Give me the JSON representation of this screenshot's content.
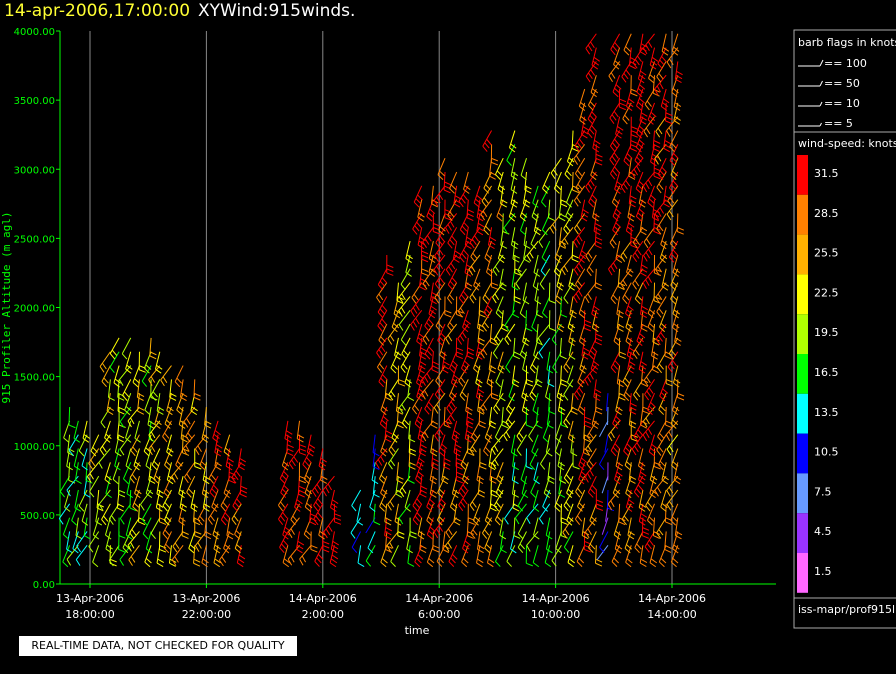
{
  "title": {
    "date": "14-apr-2006,17:00:00",
    "name": "XYWind:915winds."
  },
  "chart_data": {
    "type": "scatter",
    "ylabel": "915 Profiler Altitude (m agl)",
    "xlabel": "time",
    "ylim": [
      0,
      4000
    ],
    "y_ticks": [
      "0.00",
      "500.00",
      "1000.00",
      "1500.00",
      "2000.00",
      "2500.00",
      "3000.00",
      "3500.00",
      "4000.00"
    ],
    "x_ticks": [
      {
        "date": "13-Apr-2006",
        "time": "18:00:00"
      },
      {
        "date": "13-Apr-2006",
        "time": "22:00:00"
      },
      {
        "date": "14-Apr-2006",
        "time": "2:00:00"
      },
      {
        "date": "14-Apr-2006",
        "time": "6:00:00"
      },
      {
        "date": "14-Apr-2006",
        "time": "10:00:00"
      },
      {
        "date": "14-Apr-2006",
        "time": "14:00:00"
      }
    ],
    "grid": "vertical",
    "columns": [
      {
        "t": 17.3,
        "top": 1300,
        "spd": 19
      },
      {
        "t": 17.6,
        "top": 1200,
        "spd": 17
      },
      {
        "t": 17.9,
        "top": 1200,
        "spd": 18
      },
      {
        "t": 18.3,
        "top": 1100,
        "spd": 21
      },
      {
        "t": 18.7,
        "top": 1750,
        "spd": 23
      },
      {
        "t": 19.0,
        "top": 1800,
        "spd": 22
      },
      {
        "t": 19.4,
        "top": 1800,
        "spd": 20
      },
      {
        "t": 19.7,
        "top": 1750,
        "spd": 24
      },
      {
        "t": 20.1,
        "top": 1800,
        "spd": 21
      },
      {
        "t": 20.4,
        "top": 1700,
        "spd": 24
      },
      {
        "t": 20.8,
        "top": 1650,
        "spd": 26
      },
      {
        "t": 21.2,
        "top": 1600,
        "spd": 27
      },
      {
        "t": 21.6,
        "top": 1500,
        "spd": 27
      },
      {
        "t": 22.0,
        "top": 1300,
        "spd": 28
      },
      {
        "t": 22.4,
        "top": 1200,
        "spd": 30
      },
      {
        "t": 22.8,
        "top": 1100,
        "spd": 31
      },
      {
        "t": 23.2,
        "top": 1050,
        "spd": 31
      },
      {
        "t": 24.8,
        "top": 1200,
        "spd": 32
      },
      {
        "t": 25.2,
        "top": 1200,
        "spd": 32
      },
      {
        "t": 25.6,
        "top": 1150,
        "spd": 32
      },
      {
        "t": 26.0,
        "top": 1000,
        "spd": 32
      },
      {
        "t": 26.4,
        "top": 800,
        "spd": 32
      },
      {
        "t": 27.3,
        "top": 750,
        "spd": 12
      },
      {
        "t": 27.8,
        "top": 1100,
        "spd": 14
      },
      {
        "t": 28.2,
        "top": 2400,
        "spd": 31
      },
      {
        "t": 28.6,
        "top": 2200,
        "spd": 25
      },
      {
        "t": 29.0,
        "top": 2500,
        "spd": 22
      },
      {
        "t": 29.4,
        "top": 2900,
        "spd": 32
      },
      {
        "t": 29.8,
        "top": 2900,
        "spd": 32
      },
      {
        "t": 30.2,
        "top": 3100,
        "spd": 32
      },
      {
        "t": 30.6,
        "top": 3000,
        "spd": 32
      },
      {
        "t": 31.0,
        "top": 3000,
        "spd": 32
      },
      {
        "t": 31.4,
        "top": 2900,
        "spd": 29
      },
      {
        "t": 31.8,
        "top": 3300,
        "spd": 28
      },
      {
        "t": 32.2,
        "top": 3100,
        "spd": 24
      },
      {
        "t": 32.6,
        "top": 3300,
        "spd": 21
      },
      {
        "t": 33.0,
        "top": 3100,
        "spd": 21
      },
      {
        "t": 33.4,
        "top": 2900,
        "spd": 20
      },
      {
        "t": 33.8,
        "top": 3000,
        "spd": 19
      },
      {
        "t": 34.2,
        "top": 3100,
        "spd": 22
      },
      {
        "t": 34.6,
        "top": 3300,
        "spd": 24
      },
      {
        "t": 35.0,
        "top": 3600,
        "spd": 31
      },
      {
        "t": 35.4,
        "top": 4000,
        "spd": 32
      },
      {
        "t": 35.8,
        "top": 1400,
        "spd": 9
      },
      {
        "t": 36.2,
        "top": 4000,
        "spd": 32
      },
      {
        "t": 36.6,
        "top": 4000,
        "spd": 32
      },
      {
        "t": 37.0,
        "top": 4000,
        "spd": 32
      },
      {
        "t": 37.4,
        "top": 4000,
        "spd": 32
      },
      {
        "t": 37.8,
        "top": 4000,
        "spd": 31
      },
      {
        "t": 38.2,
        "top": 4000,
        "spd": 30
      }
    ]
  },
  "legend": {
    "barb_title": "barb flags in knots",
    "barbs": [
      "== 100",
      "== 50",
      "== 10",
      "== 5"
    ],
    "speed_title": "wind-speed: knots",
    "scale": [
      {
        "label": "31.5",
        "color": "#ff0000"
      },
      {
        "label": "28.5",
        "color": "#ff8000"
      },
      {
        "label": "25.5",
        "color": "#ffb000"
      },
      {
        "label": "22.5",
        "color": "#ffff00"
      },
      {
        "label": "19.5",
        "color": "#b0ff00"
      },
      {
        "label": "16.5",
        "color": "#00ff00"
      },
      {
        "label": "13.5",
        "color": "#00ffff"
      },
      {
        "label": "10.5",
        "color": "#0000ff"
      },
      {
        "label": "7.5",
        "color": "#6699ff"
      },
      {
        "label": "4.5",
        "color": "#9933ff"
      },
      {
        "label": "1.5",
        "color": "#ff66ff"
      }
    ],
    "source": "iss-mapr/prof915l"
  },
  "warning": "REAL-TIME DATA, NOT CHECKED FOR QUALITY"
}
